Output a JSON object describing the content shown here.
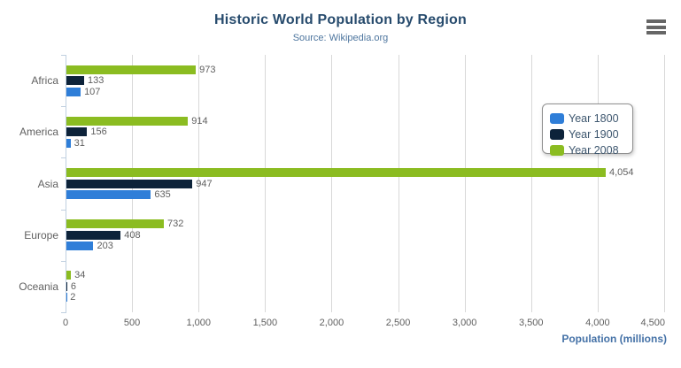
{
  "chart_data": {
    "type": "bar",
    "title": "Historic World Population by Region",
    "subtitle": "Source: Wikipedia.org",
    "categories": [
      "Africa",
      "America",
      "Asia",
      "Europe",
      "Oceania"
    ],
    "series": [
      {
        "name": "Year 1800",
        "color": "#2f7ed8",
        "values": [
          107,
          31,
          635,
          203,
          2
        ]
      },
      {
        "name": "Year 1900",
        "color": "#0d233a",
        "values": [
          133,
          156,
          947,
          408,
          6
        ]
      },
      {
        "name": "Year 2008",
        "color": "#8bbc21",
        "values": [
          973,
          914,
          4054,
          732,
          34
        ]
      }
    ],
    "data_labels": [
      "107",
      "31",
      "635",
      "203",
      "2",
      "133",
      "156",
      "947",
      "408",
      "6",
      "973",
      "914",
      "4,054",
      "732",
      "34"
    ],
    "xlabel": "Population (millions)",
    "ylabel": "",
    "xlim": [
      0,
      4500
    ],
    "xticks": [
      0,
      500,
      1000,
      1500,
      2000,
      2500,
      3000,
      3500,
      4000,
      4500
    ],
    "xtick_labels": [
      "0",
      "500",
      "1,000",
      "1,500",
      "2,000",
      "2,500",
      "3,000",
      "3,500",
      "4,000",
      "4,500"
    ],
    "grid": true,
    "legend_position": "right",
    "series_display_order": "reversed",
    "colors": {
      "title": "#274b6d",
      "subtitle": "#4d759e",
      "axis_labels": "#606060",
      "axis_title": "#4572a7",
      "gridline": "#d8d8d8",
      "axis_line": "#c0d0e0",
      "legend_border": "#909090",
      "legend_text": "#3e576f",
      "menu_icon": "#666666"
    }
  },
  "menu": {
    "icon": "hamburger-menu"
  }
}
